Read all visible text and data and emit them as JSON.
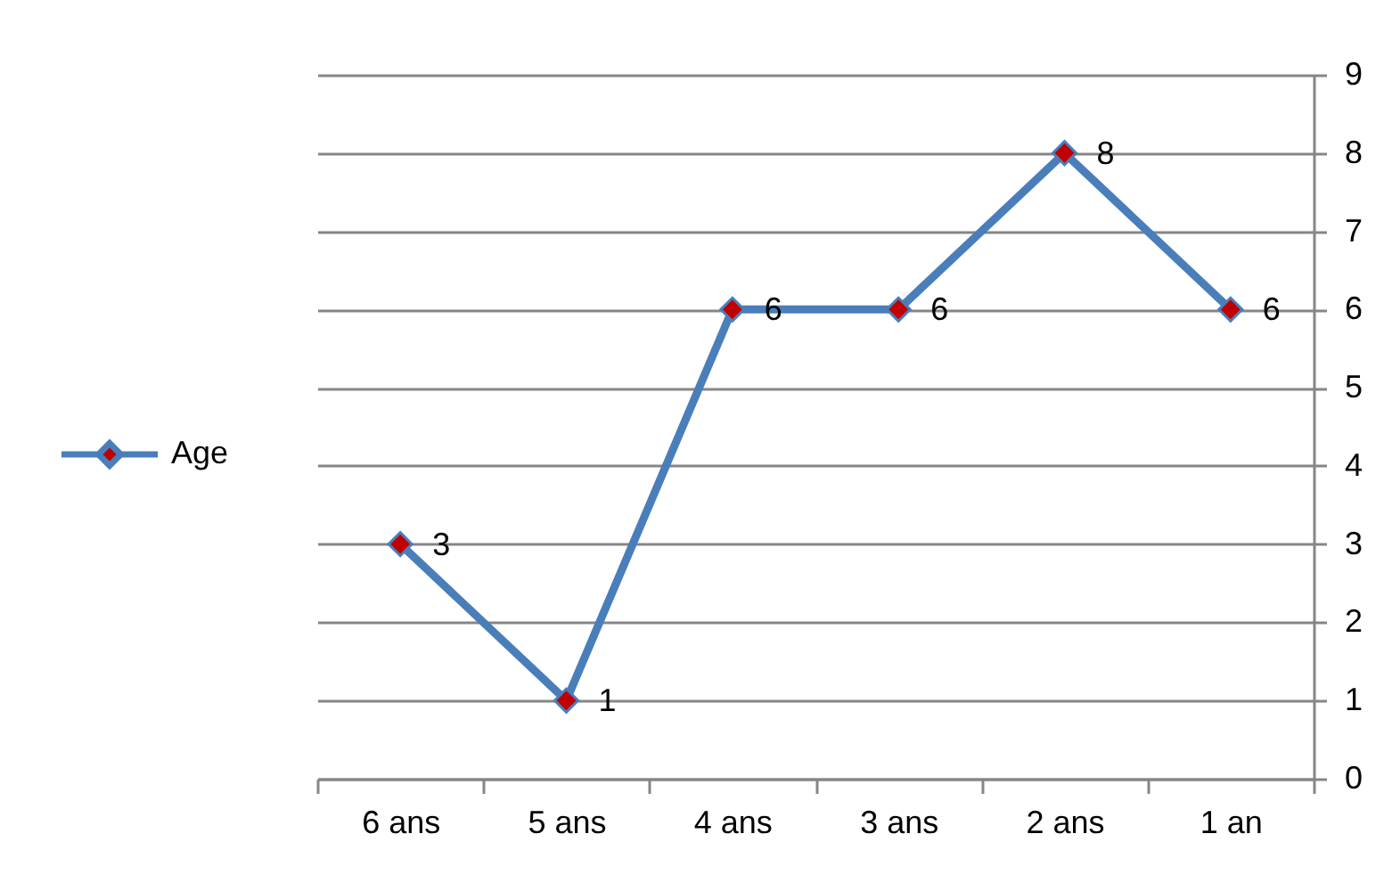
{
  "chart_data": {
    "type": "line",
    "categories": [
      "6 ans",
      "5 ans",
      "4 ans",
      "3 ans",
      "2 ans",
      "1 an"
    ],
    "series": [
      {
        "name": "Age",
        "color": "#4a7ebb",
        "colors": [
          "#c00000",
          "#c00000",
          "#c00000",
          "#c00000",
          "#c00000",
          "#c00000"
        ],
        "values": [
          3,
          1,
          6,
          6,
          8,
          6
        ]
      }
    ],
    "ylim": [
      0,
      9
    ],
    "yticks": [
      0,
      1,
      2,
      3,
      4,
      5,
      6,
      7,
      8,
      9
    ],
    "grid": "y",
    "legend": "left",
    "marker": "diamond",
    "line_style": "solid",
    "data_labels": true
  }
}
